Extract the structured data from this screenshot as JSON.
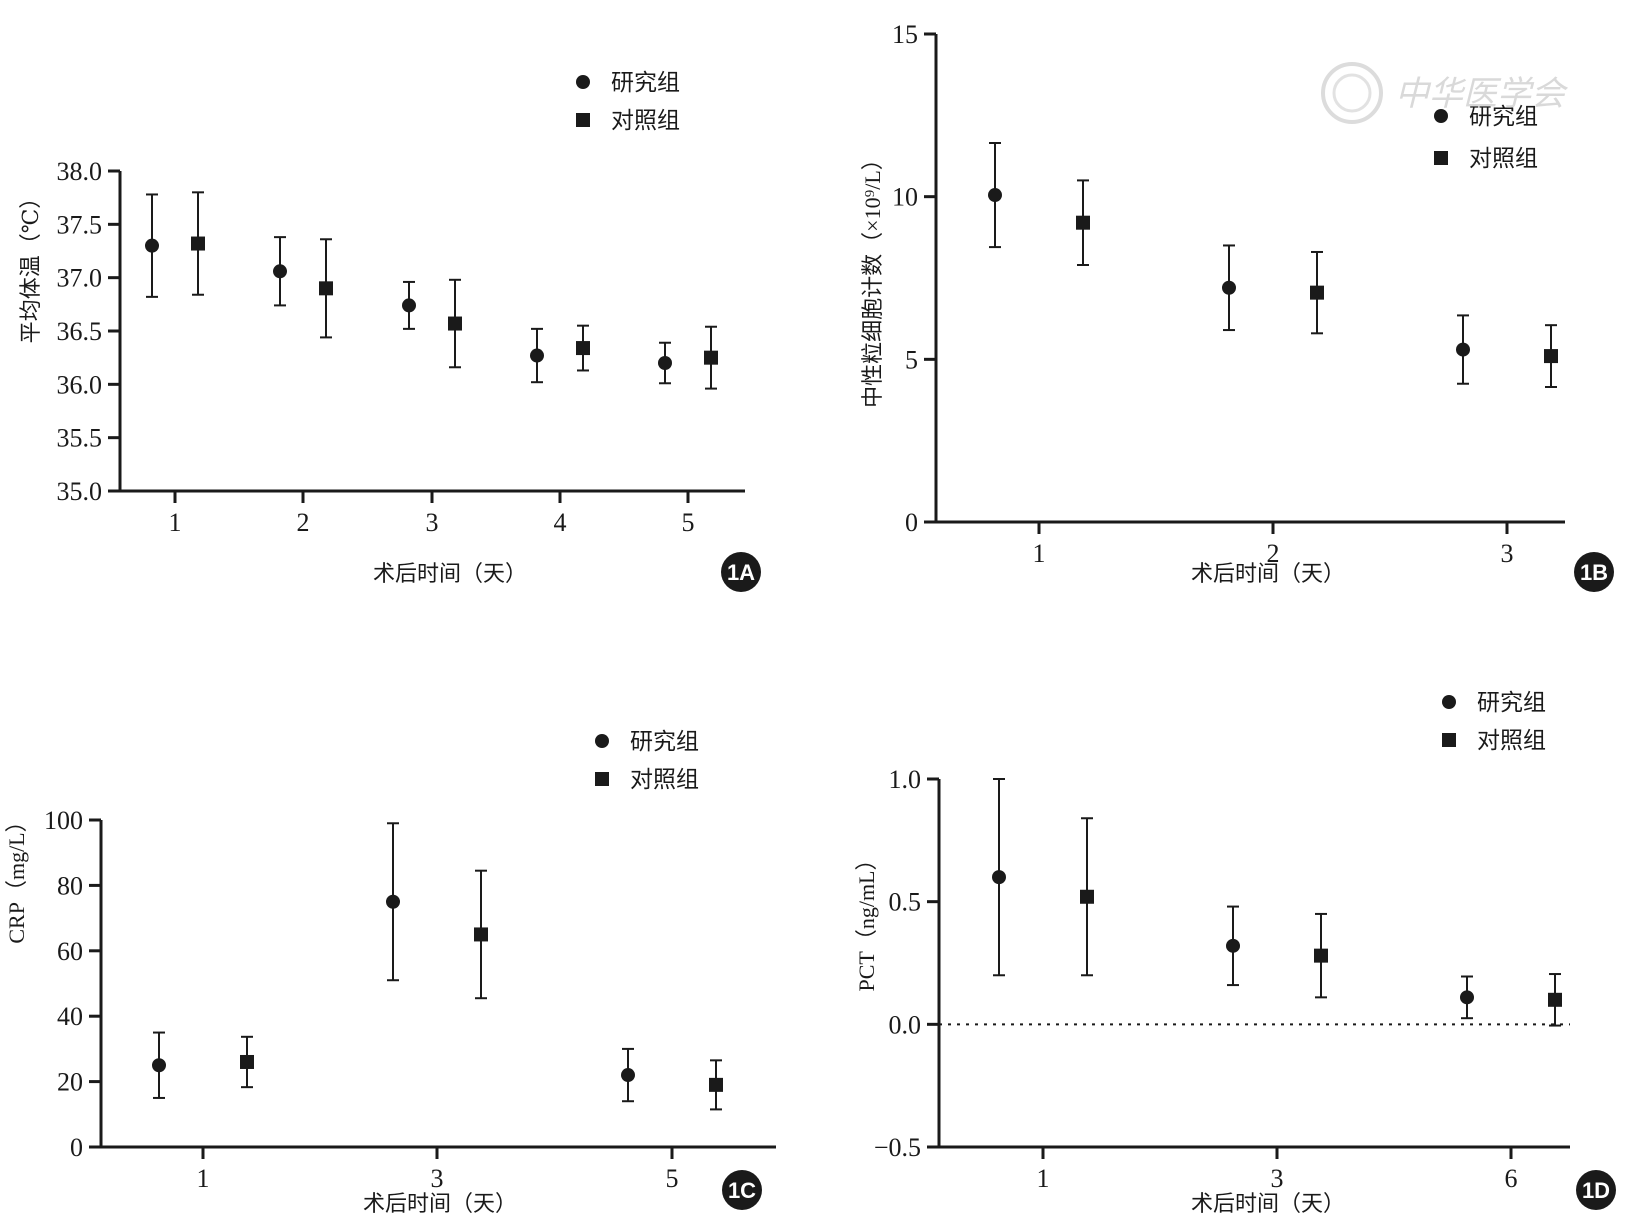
{
  "watermark": "中华医学会",
  "chart_data": [
    {
      "panel": "1A",
      "type": "scatter",
      "xlabel": "术后时间（天）",
      "ylabel": "平均体温（℃）",
      "categories": [
        "1",
        "2",
        "3",
        "4",
        "5"
      ],
      "yticks": [
        "35.0",
        "35.5",
        "36.0",
        "36.5",
        "37.0",
        "37.5",
        "38.0"
      ],
      "ylim": [
        35.0,
        38.0
      ],
      "legend": [
        "研究组",
        "对照组"
      ],
      "series": [
        {
          "name": "研究组",
          "marker": "circle",
          "values": [
            37.3,
            37.06,
            36.74,
            36.27,
            36.2
          ],
          "err": [
            0.48,
            0.32,
            0.22,
            0.25,
            0.19
          ]
        },
        {
          "name": "对照组",
          "marker": "square",
          "values": [
            37.32,
            36.9,
            36.57,
            36.34,
            36.25
          ],
          "err": [
            0.48,
            0.46,
            0.41,
            0.21,
            0.29
          ]
        }
      ],
      "zero_line": false
    },
    {
      "panel": "1B",
      "type": "scatter",
      "xlabel": "术后时间（天）",
      "ylabel": "中性粒细胞计数（×10⁹/L）",
      "categories": [
        "1",
        "2",
        "3"
      ],
      "yticks": [
        "0",
        "5",
        "10",
        "15"
      ],
      "ylim": [
        0,
        15
      ],
      "legend": [
        "研究组",
        "对照组"
      ],
      "series": [
        {
          "name": "研究组",
          "marker": "circle",
          "values": [
            10.05,
            7.2,
            5.3
          ],
          "err": [
            1.6,
            1.3,
            1.05
          ]
        },
        {
          "name": "对照组",
          "marker": "square",
          "values": [
            9.2,
            7.05,
            5.1
          ],
          "err": [
            1.3,
            1.25,
            0.95
          ]
        }
      ],
      "zero_line": false
    },
    {
      "panel": "1C",
      "type": "scatter",
      "xlabel": "术后时间（天）",
      "ylabel": "CRP（mg/L）",
      "categories": [
        "1",
        "3",
        "5"
      ],
      "yticks": [
        "0",
        "20",
        "40",
        "60",
        "80",
        "100"
      ],
      "ylim": [
        0,
        100
      ],
      "legend": [
        "研究组",
        "对照组"
      ],
      "series": [
        {
          "name": "研究组",
          "marker": "circle",
          "values": [
            25,
            75,
            22
          ],
          "err": [
            10,
            24,
            8
          ]
        },
        {
          "name": "对照组",
          "marker": "square",
          "values": [
            26,
            65,
            19
          ],
          "err": [
            7.7,
            19.5,
            7.5
          ]
        }
      ],
      "zero_line": false
    },
    {
      "panel": "1D",
      "type": "scatter",
      "xlabel": "术后时间（天）",
      "ylabel": "PCT（ng/mL）",
      "categories": [
        "1",
        "3",
        "6"
      ],
      "yticks": [
        "−0.5",
        "0.0",
        "0.5",
        "1.0"
      ],
      "ylim": [
        -0.5,
        1.0
      ],
      "legend": [
        "研究组",
        "对照组"
      ],
      "series": [
        {
          "name": "研究组",
          "marker": "circle",
          "values": [
            0.6,
            0.32,
            0.11
          ],
          "err": [
            0.4,
            0.16,
            0.085
          ]
        },
        {
          "name": "对照组",
          "marker": "square",
          "values": [
            0.52,
            0.28,
            0.1
          ],
          "err": [
            0.32,
            0.17,
            0.105
          ]
        }
      ],
      "zero_line": true
    }
  ]
}
